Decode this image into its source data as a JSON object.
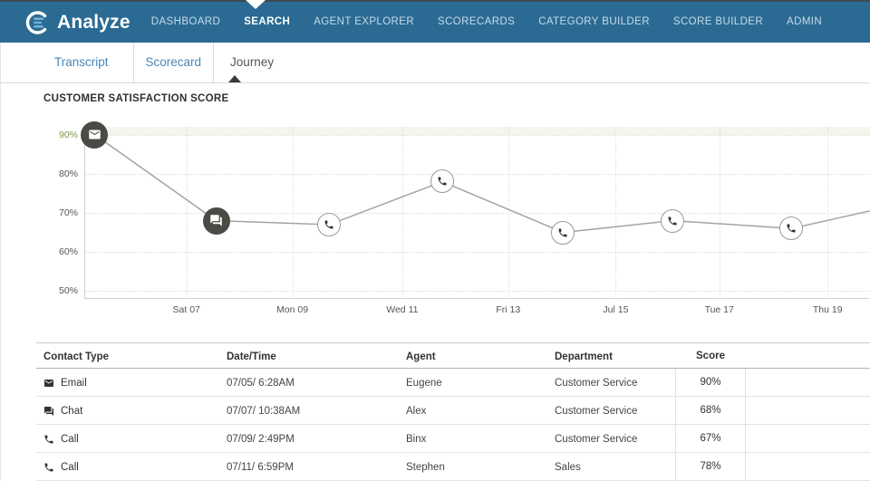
{
  "colors": {
    "nav_bg": "#2b6b93",
    "nav_text": "#c6dbe9",
    "nav_active_text": "#ffffff",
    "tab_link": "#4a87b5",
    "tab_active_text": "#555555",
    "tick_highlight_green": "#7e9a46",
    "axis_text": "#555555",
    "chart_line": "#a3a3a3",
    "marker_dark_fill": "#4b4a45",
    "marker_light_border": "#9a9a9a"
  },
  "nav": {
    "brand": "Analyze",
    "items": [
      {
        "label": "DASHBOARD",
        "active": false
      },
      {
        "label": "SEARCH",
        "active": true
      },
      {
        "label": "AGENT EXPLORER",
        "active": false
      },
      {
        "label": "SCORECARDS",
        "active": false
      },
      {
        "label": "CATEGORY BUILDER",
        "active": false
      },
      {
        "label": "SCORE BUILDER",
        "active": false
      },
      {
        "label": "ADMIN",
        "active": false
      }
    ]
  },
  "tabs": [
    {
      "label": "Transcript",
      "active": false
    },
    {
      "label": "Scorecard",
      "active": false
    },
    {
      "label": "Journey",
      "active": true
    }
  ],
  "chart_data": {
    "type": "line",
    "title": "CUSTOMER SATISFACTION SCORE",
    "xlabel": "",
    "ylabel": "",
    "ylim": [
      48,
      92
    ],
    "grid": true,
    "legend": false,
    "y_ticks": [
      {
        "label": "90%",
        "value": 90,
        "highlight": true
      },
      {
        "label": "80%",
        "value": 80,
        "highlight": false
      },
      {
        "label": "70%",
        "value": 70,
        "highlight": false
      },
      {
        "label": "60%",
        "value": 60,
        "highlight": false
      },
      {
        "label": "50%",
        "value": 50,
        "highlight": false
      }
    ],
    "x_ticks": [
      {
        "label": "Sat 07",
        "f": 0.129
      },
      {
        "label": "Mon 09",
        "f": 0.264
      },
      {
        "label": "Wed 11",
        "f": 0.404
      },
      {
        "label": "Fri 13",
        "f": 0.539
      },
      {
        "label": "Jul 15",
        "f": 0.676
      },
      {
        "label": "Tue 17",
        "f": 0.808
      },
      {
        "label": "Thu 19",
        "f": 0.946
      }
    ],
    "points": [
      {
        "f": 0.012,
        "value": 90,
        "icon": "email-icon",
        "style": "dark"
      },
      {
        "f": 0.167,
        "value": 68,
        "icon": "chat-icon",
        "style": "dark"
      },
      {
        "f": 0.311,
        "value": 67,
        "icon": "phone-icon",
        "style": "light"
      },
      {
        "f": 0.455,
        "value": 78,
        "icon": "phone-icon",
        "style": "light"
      },
      {
        "f": 0.609,
        "value": 65,
        "icon": "phone-icon",
        "style": "light"
      },
      {
        "f": 0.748,
        "value": 68,
        "icon": "phone-icon",
        "style": "light"
      },
      {
        "f": 0.9,
        "value": 66,
        "icon": "phone-icon",
        "style": "light"
      }
    ],
    "line_end": {
      "f": 1.0,
      "value": 70.5
    }
  },
  "table": {
    "columns": [
      "Contact Type",
      "Date/Time",
      "Agent",
      "Department",
      "Score",
      ""
    ],
    "rows": [
      {
        "contact_type": "Email",
        "icon": "email-icon",
        "datetime": "07/05/ 6:28AM",
        "agent": "Eugene",
        "department": "Customer Service",
        "score": "90%"
      },
      {
        "contact_type": "Chat",
        "icon": "chat-icon",
        "datetime": "07/07/ 10:38AM",
        "agent": "Alex",
        "department": "Customer Service",
        "score": "68%"
      },
      {
        "contact_type": "Call",
        "icon": "phone-icon",
        "datetime": "07/09/ 2:49PM",
        "agent": "Binx",
        "department": "Customer Service",
        "score": "67%"
      },
      {
        "contact_type": "Call",
        "icon": "phone-icon",
        "datetime": "07/11/ 6:59PM",
        "agent": "Stephen",
        "department": "Sales",
        "score": "78%"
      }
    ]
  }
}
